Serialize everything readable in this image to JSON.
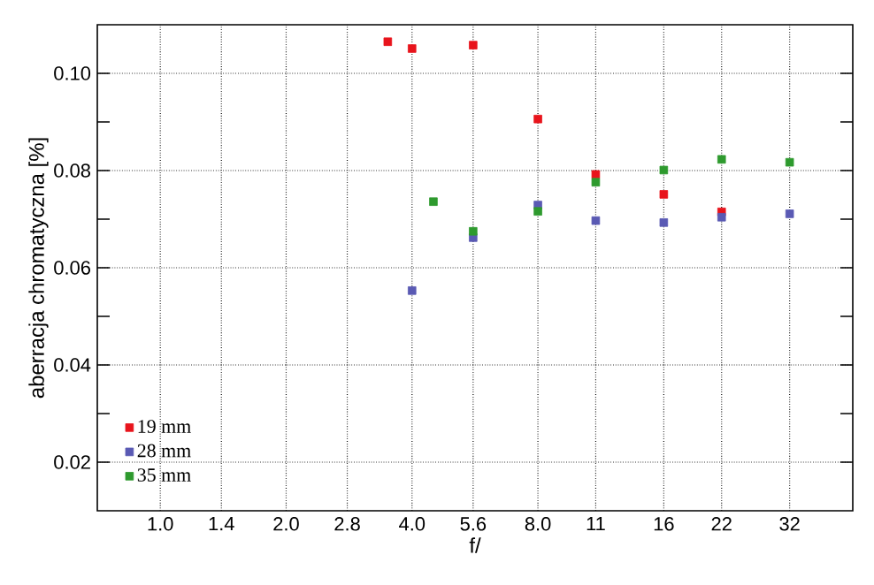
{
  "chart_data": {
    "type": "scatter",
    "xlabel": "f/",
    "ylabel": "aberracja chromatyczna [%]",
    "log": "x",
    "xlim": [
      0.707,
      45.3
    ],
    "ylim": [
      0.01,
      0.11
    ],
    "xticks": [
      {
        "value": 1.0,
        "label": "1.0"
      },
      {
        "value": 1.4,
        "label": "1.4"
      },
      {
        "value": 2.0,
        "label": "2.0"
      },
      {
        "value": 2.8,
        "label": "2.8"
      },
      {
        "value": 4.0,
        "label": "4.0"
      },
      {
        "value": 5.6,
        "label": "5.6"
      },
      {
        "value": 8.0,
        "label": "8.0"
      },
      11,
      16,
      22,
      32
    ],
    "yticks": [
      {
        "value": 0.02,
        "label": "0.02"
      },
      {
        "value": 0.03,
        "label": null
      },
      {
        "value": 0.04,
        "label": "0.04"
      },
      {
        "value": 0.05,
        "label": null
      },
      {
        "value": 0.06,
        "label": "0.06"
      },
      {
        "value": 0.07,
        "label": null
      },
      {
        "value": 0.08,
        "label": "0.08"
      },
      {
        "value": 0.09,
        "label": null
      },
      {
        "value": 0.1,
        "label": "0.10"
      }
    ],
    "grid": true,
    "legend": "bottom left",
    "marker": "square",
    "series": [
      {
        "name": "19 mm",
        "color": "#e8141c",
        "x": [
          3.5,
          4.0,
          5.6,
          8.0,
          11,
          16,
          22
        ],
        "values": [
          0.1065,
          0.1051,
          0.1058,
          0.0906,
          0.0792,
          0.0751,
          0.0715
        ]
      },
      {
        "name": "28 mm",
        "color": "#5a5ab4",
        "x": [
          4.0,
          5.6,
          8.0,
          11,
          16,
          22,
          32
        ],
        "values": [
          0.0553,
          0.0662,
          0.0729,
          0.0697,
          0.0693,
          0.0704,
          0.0711
        ]
      },
      {
        "name": "35 mm",
        "color": "#2e9a2e",
        "x": [
          4.5,
          5.6,
          8.0,
          11,
          16,
          22,
          32
        ],
        "values": [
          0.0736,
          0.0675,
          0.0716,
          0.0776,
          0.0801,
          0.0823,
          0.0817
        ]
      }
    ]
  }
}
